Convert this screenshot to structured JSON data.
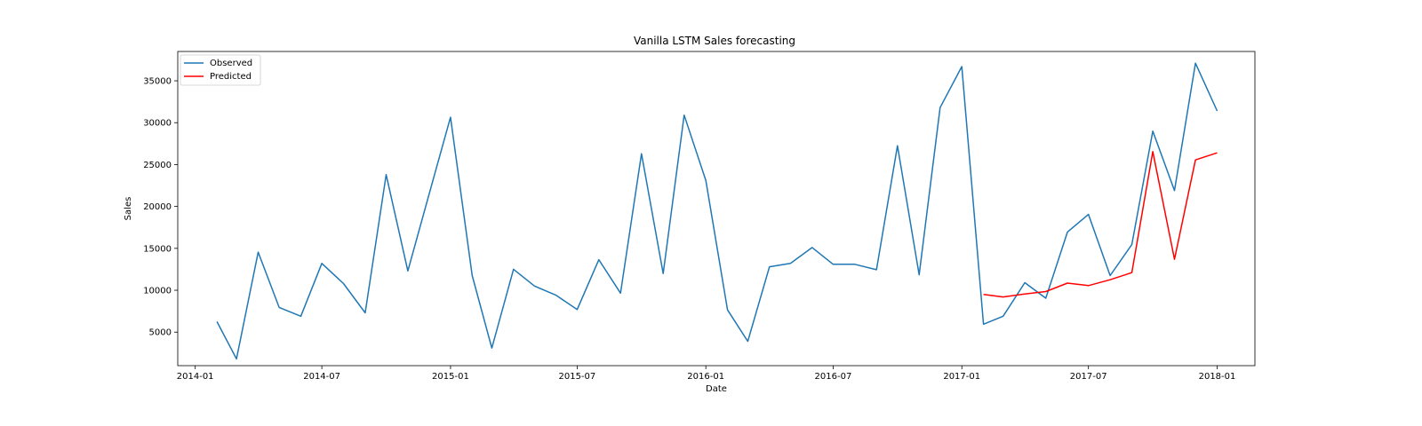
{
  "chart_data": {
    "type": "line",
    "title": "Vanilla LSTM Sales forecasting",
    "xlabel": "Date",
    "ylabel": "Sales",
    "x_ticks": [
      "2014-01",
      "2014-07",
      "2015-01",
      "2015-07",
      "2016-01",
      "2016-07",
      "2017-01",
      "2017-07",
      "2018-01"
    ],
    "y_ticks": [
      5000,
      10000,
      15000,
      20000,
      25000,
      30000,
      35000
    ],
    "xlim": [
      "2013-12-07",
      "2018-02-24"
    ],
    "ylim": [
      1000,
      38500
    ],
    "grid": false,
    "legend_position": "upper-left",
    "series": [
      {
        "name": "Observed",
        "color": "#1f77b4",
        "x": [
          "2014-02-01",
          "2014-03-01",
          "2014-04-01",
          "2014-05-01",
          "2014-06-01",
          "2014-07-01",
          "2014-08-01",
          "2014-09-01",
          "2014-10-01",
          "2014-11-01",
          "2014-12-01",
          "2015-01-01",
          "2015-02-01",
          "2015-03-01",
          "2015-04-01",
          "2015-05-01",
          "2015-06-01",
          "2015-07-01",
          "2015-08-01",
          "2015-09-01",
          "2015-10-01",
          "2015-11-01",
          "2015-12-01",
          "2016-01-01",
          "2016-02-01",
          "2016-03-01",
          "2016-04-01",
          "2016-05-01",
          "2016-06-01",
          "2016-07-01",
          "2016-08-01",
          "2016-09-01",
          "2016-10-01",
          "2016-11-01",
          "2016-12-01",
          "2017-01-01",
          "2017-02-01",
          "2017-03-01",
          "2017-04-01",
          "2017-05-01",
          "2017-06-01",
          "2017-07-01",
          "2017-08-01",
          "2017-09-01",
          "2017-10-01",
          "2017-11-01",
          "2017-12-01",
          "2018-01-01"
        ],
        "values": [
          6250,
          1800,
          14550,
          7950,
          6900,
          13200,
          10800,
          7300,
          23800,
          12300,
          21350,
          30650,
          11750,
          3100,
          12500,
          10500,
          9400,
          7700,
          13650,
          9650,
          26300,
          12000,
          30900,
          23100,
          7650,
          3900,
          12800,
          13200,
          15100,
          13100,
          13100,
          12450,
          27250,
          11850,
          31800,
          36700,
          5950,
          6900,
          10900,
          9050,
          16950,
          19050,
          11750,
          15450,
          29000,
          21900,
          37100,
          31400
        ]
      },
      {
        "name": "Predicted",
        "color": "#ff0000",
        "x": [
          "2017-02-01",
          "2017-03-01",
          "2017-04-01",
          "2017-05-01",
          "2017-06-01",
          "2017-07-01",
          "2017-08-01",
          "2017-09-01",
          "2017-10-01",
          "2017-11-01",
          "2017-12-01",
          "2018-01-01"
        ],
        "values": [
          9500,
          9200,
          9550,
          9850,
          10850,
          10550,
          11250,
          12100,
          26550,
          13700,
          25550,
          26400
        ]
      }
    ]
  }
}
